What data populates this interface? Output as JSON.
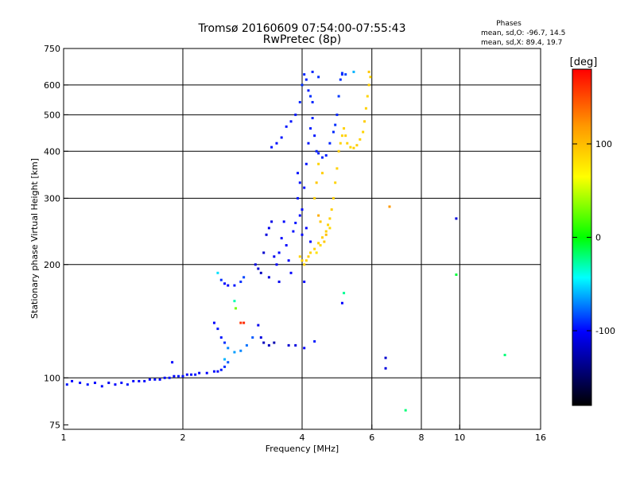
{
  "chart_data": {
    "type": "scatter",
    "title": "Tromsø 20160609 07:54:00-07:55:43",
    "subtitle": "RwPretec (8p)",
    "phases": {
      "heading": "Phases",
      "o_line": "mean, sd,O: -96.7, 14.5",
      "x_line": "mean, sd,X:  89.4, 19.7"
    },
    "xlabel": "Frequency [MHz]",
    "ylabel": "Stationary phase Virtual Height [km]",
    "x_scale": "log",
    "y_scale": "log",
    "xlim": [
      1,
      16
    ],
    "ylim": [
      73,
      750
    ],
    "x_ticks": [
      1,
      2,
      4,
      6,
      8,
      10,
      16
    ],
    "x_tick_labels": [
      "1",
      "2",
      "4",
      "6",
      "8",
      "10",
      "16"
    ],
    "x_grid": [
      2,
      4,
      6,
      8,
      10
    ],
    "y_ticks": [
      75,
      100,
      200,
      300,
      400,
      500,
      600,
      750
    ],
    "y_tick_labels": [
      "75",
      "100",
      "200",
      "300",
      "400",
      "500",
      "600",
      "750"
    ],
    "y_grid": [
      100,
      200,
      300,
      400,
      500,
      600
    ],
    "grid": true,
    "colorbar": {
      "label": "[deg]",
      "range": [
        -180,
        180
      ],
      "ticks": [
        100,
        0,
        -100
      ],
      "tick_labels": [
        "100",
        "0",
        "-100"
      ],
      "stops": [
        "#ff0000",
        "#ff9900",
        "#ffff00",
        "#00ff00",
        "#00ffff",
        "#0000ff",
        "#000000"
      ]
    },
    "series": [
      {
        "points": [
          [
            1.02,
            96,
            -95
          ],
          [
            1.05,
            98,
            -100
          ],
          [
            1.1,
            97,
            -98
          ],
          [
            1.15,
            96,
            -95
          ],
          [
            1.2,
            97,
            -100
          ],
          [
            1.25,
            95,
            -98
          ],
          [
            1.3,
            97,
            -105
          ],
          [
            1.35,
            96,
            -100
          ],
          [
            1.4,
            97,
            -98
          ],
          [
            1.45,
            96,
            -95
          ],
          [
            1.5,
            98,
            -100
          ],
          [
            1.55,
            98,
            -102
          ],
          [
            1.6,
            98,
            -98
          ],
          [
            1.65,
            99,
            -100
          ],
          [
            1.7,
            99,
            -97
          ],
          [
            1.75,
            99,
            -100
          ],
          [
            1.8,
            100,
            -98
          ],
          [
            1.85,
            100,
            -96
          ],
          [
            1.9,
            101,
            -100
          ],
          [
            1.95,
            101,
            -95
          ],
          [
            2.0,
            101,
            -97
          ],
          [
            2.05,
            102,
            -100
          ],
          [
            2.1,
            102,
            -98
          ],
          [
            2.15,
            102,
            -96
          ],
          [
            2.2,
            103,
            -99
          ],
          [
            2.3,
            103,
            -100
          ],
          [
            2.4,
            104,
            -97
          ],
          [
            2.45,
            104,
            -99
          ],
          [
            2.5,
            105,
            -95
          ],
          [
            2.55,
            107,
            -90
          ],
          [
            2.6,
            110,
            -80
          ],
          [
            2.55,
            112,
            -60
          ],
          [
            1.88,
            110,
            -100
          ],
          [
            2.45,
            190,
            -50
          ],
          [
            2.5,
            182,
            -90
          ],
          [
            2.55,
            178,
            -100
          ],
          [
            2.6,
            176,
            -100
          ],
          [
            2.7,
            176,
            -95
          ],
          [
            2.8,
            180,
            -90
          ],
          [
            2.85,
            185,
            -85
          ],
          [
            2.4,
            140,
            -100
          ],
          [
            2.45,
            135,
            -95
          ],
          [
            2.5,
            128,
            -95
          ],
          [
            2.55,
            124,
            -90
          ],
          [
            2.6,
            120,
            -70
          ],
          [
            2.7,
            117,
            -65
          ],
          [
            2.8,
            118,
            -70
          ],
          [
            2.9,
            122,
            -75
          ],
          [
            3.0,
            128,
            -80
          ],
          [
            3.1,
            138,
            -105
          ],
          [
            3.15,
            128,
            -110
          ],
          [
            3.2,
            124,
            -120
          ],
          [
            3.3,
            122,
            -120
          ],
          [
            3.4,
            124,
            -125
          ],
          [
            2.8,
            140,
            160
          ],
          [
            2.85,
            140,
            165
          ],
          [
            2.7,
            160,
            -30
          ],
          [
            2.72,
            153,
            30
          ],
          [
            3.05,
            200,
            -110
          ],
          [
            3.1,
            195,
            -115
          ],
          [
            3.15,
            190,
            -120
          ],
          [
            3.2,
            215,
            -115
          ],
          [
            3.25,
            240,
            -110
          ],
          [
            3.3,
            250,
            -105
          ],
          [
            3.35,
            260,
            -108
          ],
          [
            3.4,
            210,
            -105
          ],
          [
            3.45,
            200,
            -100
          ],
          [
            3.5,
            215,
            -98
          ],
          [
            3.55,
            235,
            -100
          ],
          [
            3.6,
            260,
            -98
          ],
          [
            3.65,
            225,
            -100
          ],
          [
            3.7,
            205,
            -102
          ],
          [
            3.75,
            190,
            -100
          ],
          [
            3.5,
            180,
            -105
          ],
          [
            3.3,
            185,
            -110
          ],
          [
            3.8,
            245,
            -97
          ],
          [
            3.85,
            258,
            -96
          ],
          [
            3.9,
            300,
            -95
          ],
          [
            3.95,
            330,
            -96
          ],
          [
            3.35,
            410,
            -95
          ],
          [
            3.45,
            420,
            -97
          ],
          [
            3.55,
            435,
            -96
          ],
          [
            3.65,
            465,
            -95
          ],
          [
            3.75,
            480,
            -96
          ],
          [
            3.85,
            500,
            -95
          ],
          [
            3.95,
            540,
            -92
          ],
          [
            4.0,
            600,
            -90
          ],
          [
            4.05,
            640,
            -92
          ],
          [
            4.1,
            620,
            -93
          ],
          [
            4.15,
            580,
            -94
          ],
          [
            4.2,
            560,
            -90
          ],
          [
            4.25,
            540,
            -92
          ],
          [
            4.3,
            440,
            -95
          ],
          [
            4.35,
            400,
            -94
          ],
          [
            4.4,
            395,
            -93
          ],
          [
            4.5,
            385,
            -92
          ],
          [
            4.6,
            390,
            -93
          ],
          [
            4.7,
            420,
            -92
          ],
          [
            4.8,
            450,
            -91
          ],
          [
            4.85,
            470,
            -90
          ],
          [
            4.9,
            500,
            -92
          ],
          [
            4.95,
            560,
            -88
          ],
          [
            5.0,
            620,
            -90
          ],
          [
            5.05,
            640,
            -91
          ],
          [
            4.25,
            650,
            -92
          ],
          [
            4.4,
            630,
            -90
          ],
          [
            4.0,
            280,
            -98
          ],
          [
            4.05,
            320,
            -97
          ],
          [
            4.1,
            370,
            -96
          ],
          [
            4.15,
            420,
            -95
          ],
          [
            4.2,
            460,
            -94
          ],
          [
            4.25,
            490,
            -93
          ],
          [
            3.9,
            350,
            -96
          ],
          [
            3.95,
            270,
            -98
          ],
          [
            4.0,
            240,
            -99
          ],
          [
            4.1,
            250,
            -100
          ],
          [
            4.2,
            230,
            -98
          ],
          [
            4.05,
            180,
            -100
          ],
          [
            3.7,
            122,
            -115
          ],
          [
            6.5,
            113,
            -115
          ],
          [
            6.5,
            106,
            -110
          ],
          [
            9.8,
            265,
            -110
          ],
          [
            9.8,
            188,
            -10
          ],
          [
            7.3,
            82,
            -20
          ],
          [
            5.1,
            168,
            -25
          ],
          [
            5.05,
            158,
            -100
          ],
          [
            13.0,
            115,
            -20
          ],
          [
            4.05,
            120,
            -100
          ],
          [
            3.85,
            122,
            -110
          ],
          [
            4.3,
            125,
            -95
          ],
          [
            5.05,
            645,
            -90
          ],
          [
            5.15,
            640,
            -85
          ],
          [
            5.4,
            650,
            -60
          ]
        ]
      },
      {
        "points": [
          [
            3.95,
            210,
            90
          ],
          [
            4.0,
            205,
            90
          ],
          [
            4.05,
            200,
            88
          ],
          [
            4.1,
            205,
            90
          ],
          [
            4.15,
            210,
            92
          ],
          [
            4.2,
            215,
            90
          ],
          [
            4.3,
            220,
            88
          ],
          [
            4.4,
            228,
            90
          ],
          [
            4.5,
            236,
            92
          ],
          [
            4.6,
            245,
            90
          ],
          [
            4.65,
            255,
            88
          ],
          [
            4.7,
            265,
            90
          ],
          [
            4.75,
            280,
            92
          ],
          [
            4.8,
            300,
            90
          ],
          [
            4.85,
            330,
            88
          ],
          [
            4.9,
            360,
            90
          ],
          [
            4.95,
            400,
            92
          ],
          [
            5.0,
            420,
            90
          ],
          [
            5.05,
            440,
            88
          ],
          [
            5.1,
            460,
            90
          ],
          [
            5.15,
            440,
            92
          ],
          [
            5.2,
            420,
            90
          ],
          [
            5.3,
            410,
            88
          ],
          [
            5.4,
            408,
            90
          ],
          [
            5.5,
            415,
            92
          ],
          [
            5.6,
            430,
            90
          ],
          [
            5.7,
            450,
            88
          ],
          [
            5.75,
            480,
            92
          ],
          [
            5.8,
            520,
            90
          ],
          [
            5.85,
            560,
            88
          ],
          [
            5.9,
            600,
            92
          ],
          [
            5.95,
            630,
            90
          ],
          [
            5.9,
            650,
            95
          ],
          [
            4.35,
            215,
            80
          ],
          [
            4.45,
            225,
            85
          ],
          [
            4.55,
            230,
            95
          ],
          [
            4.6,
            240,
            100
          ],
          [
            4.7,
            250,
            85
          ],
          [
            4.4,
            270,
            110
          ],
          [
            4.45,
            260,
            95
          ],
          [
            4.3,
            300,
            90
          ],
          [
            4.35,
            330,
            95
          ],
          [
            4.5,
            350,
            92
          ],
          [
            4.4,
            370,
            88
          ],
          [
            6.65,
            285,
            120
          ]
        ]
      }
    ]
  }
}
